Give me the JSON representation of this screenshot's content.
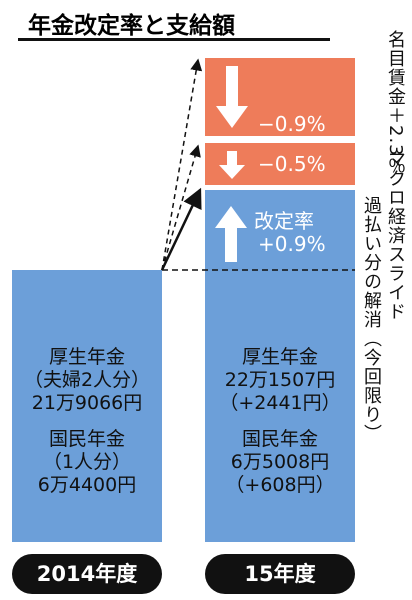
{
  "title": "年金改定率と支給額",
  "wage": {
    "label": "名目賃金",
    "value": "＋2.3％"
  },
  "steps": [
    {
      "value": "−0.9%"
    },
    {
      "value": "−0.5%"
    }
  ],
  "side_labels": [
    "マクロ経済スライド",
    "過払い分の解消（今回限り）"
  ],
  "rate": {
    "label": "改定率",
    "value": "+0.9%"
  },
  "bars": [
    {
      "year": "2014年度",
      "groups": [
        [
          "厚生年金",
          "（夫婦2人分）",
          "21万9066円"
        ],
        [
          "国民年金",
          "（1人分）",
          "6万4400円"
        ]
      ]
    },
    {
      "year": "15年度",
      "groups": [
        [
          "厚生年金",
          "22万1507円",
          "（+2441円）"
        ],
        [
          "国民年金",
          "6万5008円",
          "（+608円）"
        ]
      ]
    }
  ]
}
